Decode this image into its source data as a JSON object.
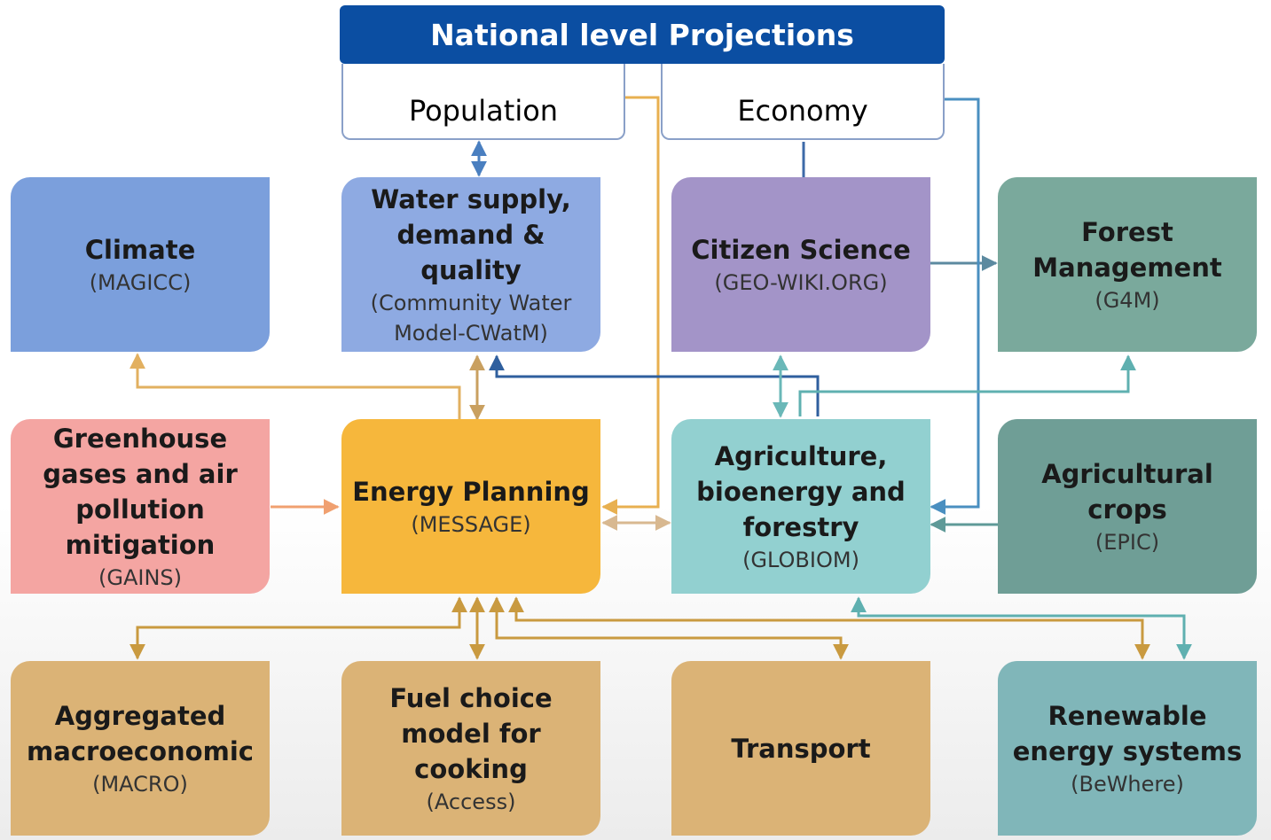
{
  "header": {
    "title": "National level Projections",
    "population": "Population",
    "economy": "Economy"
  },
  "nodes": [
    {
      "title": "Climate",
      "subtitle": "(MAGICC)"
    },
    {
      "title": "Water supply, demand & quality",
      "subtitle": "(Community Water Model-CWatM)"
    },
    {
      "title": "Citizen Science",
      "subtitle": "(GEO-WIKI.ORG)"
    },
    {
      "title": "Forest Management",
      "subtitle": "(G4M)"
    },
    {
      "title": "Greenhouse gases and air pollution mitigation",
      "subtitle": "(GAINS)"
    },
    {
      "title": "Energy Planning",
      "subtitle": "(MESSAGE)"
    },
    {
      "title": "Agriculture, bioenergy and forestry",
      "subtitle": "(GLOBIOM)"
    },
    {
      "title": "Agricultural crops",
      "subtitle": "(EPIC)"
    },
    {
      "title": "Aggregated macroeconomic",
      "subtitle": "(MACRO)"
    },
    {
      "title": "Fuel choice model for cooking",
      "subtitle": "(Access)"
    },
    {
      "title": "Transport"
    },
    {
      "title": "Renewable energy systems",
      "subtitle": "(BeWhere)"
    }
  ]
}
